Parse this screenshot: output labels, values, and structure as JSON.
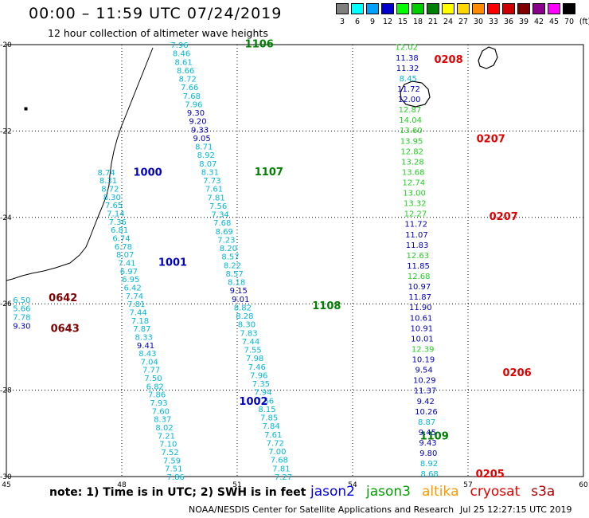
{
  "header": {
    "title": "00:00 – 11:59 UTC 07/24/2019",
    "subtitle": "12 hour collection of altimeter wave heights"
  },
  "color_scale": {
    "unit": "(ft)",
    "bins": [
      {
        "label": "3",
        "color": "#7f7f7f"
      },
      {
        "label": "6",
        "color": "#00ffff"
      },
      {
        "label": "9",
        "color": "#00a0ff"
      },
      {
        "label": "12",
        "color": "#0000cd"
      },
      {
        "label": "15",
        "color": "#00ff00"
      },
      {
        "label": "18",
        "color": "#00cc00"
      },
      {
        "label": "21",
        "color": "#008000"
      },
      {
        "label": "24",
        "color": "#ffff00"
      },
      {
        "label": "27",
        "color": "#ffd700"
      },
      {
        "label": "30",
        "color": "#ff8c00"
      },
      {
        "label": "33",
        "color": "#ff0000"
      },
      {
        "label": "36",
        "color": "#cc0000"
      },
      {
        "label": "39",
        "color": "#800000"
      },
      {
        "label": "42",
        "color": "#8b008b"
      },
      {
        "label": "45",
        "color": "#ff00ff"
      },
      {
        "label": "70",
        "color": "#000000"
      }
    ]
  },
  "axes": {
    "lon_ticks": [
      "45",
      "48",
      "51",
      "54",
      "57",
      "60"
    ],
    "lat_ticks": [
      "-20",
      "-22",
      "-24",
      "-26",
      "-28",
      "-30"
    ]
  },
  "colors": {
    "cyan": "#00b8d8",
    "blue": "#0000c0",
    "green_light": "#20d020",
    "green_dark": "#008000",
    "red": "#e00000",
    "dark_red": "#800000"
  },
  "tracks": [
    {
      "pass": "1106",
      "pass_color": "dark_green",
      "pass_lon": 51.2,
      "pass_lat": -19.97,
      "start": [
        49.5,
        -20.0
      ],
      "end": [
        52.2,
        -30.0
      ],
      "points": [
        {
          "v": "7.96",
          "c": "cyan"
        },
        {
          "v": "8.46",
          "c": "cyan"
        },
        {
          "v": "8.61",
          "c": "cyan"
        },
        {
          "v": "8.66",
          "c": "cyan"
        },
        {
          "v": "8.72",
          "c": "cyan"
        },
        {
          "v": "7.66",
          "c": "cyan"
        },
        {
          "v": "7.68",
          "c": "cyan"
        },
        {
          "v": "7.96",
          "c": "cyan"
        },
        {
          "v": "9.30",
          "c": "blue"
        },
        {
          "v": "9.20",
          "c": "blue"
        },
        {
          "v": "9.33",
          "c": "blue"
        },
        {
          "v": "9.05",
          "c": "blue"
        },
        {
          "v": "8.71",
          "c": "cyan"
        },
        {
          "v": "8.92",
          "c": "cyan"
        },
        {
          "v": "8.07",
          "c": "cyan"
        },
        {
          "v": "8.31",
          "c": "cyan"
        },
        {
          "v": "7.73",
          "c": "cyan"
        },
        {
          "v": "7.61",
          "c": "cyan"
        },
        {
          "v": "7.81",
          "c": "cyan"
        },
        {
          "v": "7.56",
          "c": "cyan"
        },
        {
          "v": "7.34",
          "c": "cyan"
        },
        {
          "v": "7.68",
          "c": "cyan"
        },
        {
          "v": "8.69",
          "c": "cyan"
        },
        {
          "v": "7.23",
          "c": "cyan"
        },
        {
          "v": "8.20",
          "c": "cyan"
        },
        {
          "v": "8.57",
          "c": "cyan"
        },
        {
          "v": "8.22",
          "c": "cyan"
        },
        {
          "v": "8.57",
          "c": "cyan"
        },
        {
          "v": "8.18",
          "c": "cyan"
        },
        {
          "v": "9.15",
          "c": "blue"
        },
        {
          "v": "9.01",
          "c": "blue"
        },
        {
          "v": "8.82",
          "c": "cyan"
        },
        {
          "v": "8.28",
          "c": "cyan"
        },
        {
          "v": "8.30",
          "c": "cyan"
        },
        {
          "v": "7.83",
          "c": "cyan"
        },
        {
          "v": "7.44",
          "c": "cyan"
        },
        {
          "v": "7.55",
          "c": "cyan"
        },
        {
          "v": "7.98",
          "c": "cyan"
        },
        {
          "v": "7.46",
          "c": "cyan"
        },
        {
          "v": "7.96",
          "c": "cyan"
        },
        {
          "v": "7.35",
          "c": "cyan"
        },
        {
          "v": "7.94",
          "c": "cyan"
        },
        {
          "v": "7.56",
          "c": "cyan"
        },
        {
          "v": "8.15",
          "c": "cyan"
        },
        {
          "v": "7.85",
          "c": "cyan"
        },
        {
          "v": "7.84",
          "c": "cyan"
        },
        {
          "v": "7.61",
          "c": "cyan"
        },
        {
          "v": "7.72",
          "c": "cyan"
        },
        {
          "v": "7.00",
          "c": "cyan"
        },
        {
          "v": "7.68",
          "c": "cyan"
        },
        {
          "v": "7.81",
          "c": "cyan"
        },
        {
          "v": "7.27",
          "c": "cyan"
        }
      ],
      "extra_labels": [
        {
          "text": "1107",
          "color": "dark_green",
          "lon": 51.45,
          "lat": -22.93
        },
        {
          "text": "1108",
          "color": "dark_green",
          "lon": 52.95,
          "lat": -26.03
        },
        {
          "text": "1109",
          "color": "dark_green",
          "lon": 55.75,
          "lat": -29.05
        }
      ]
    },
    {
      "pass": "1000",
      "pass_color": "blue",
      "pass_lon": 48.3,
      "pass_lat": -22.94,
      "start": [
        47.6,
        -22.95
      ],
      "end": [
        49.4,
        -30.0
      ],
      "points": [
        {
          "v": "8.74",
          "c": "cyan"
        },
        {
          "v": "8.31",
          "c": "cyan"
        },
        {
          "v": "8.72",
          "c": "cyan"
        },
        {
          "v": "8.30",
          "c": "cyan"
        },
        {
          "v": "7.65",
          "c": "cyan"
        },
        {
          "v": "7.14",
          "c": "cyan"
        },
        {
          "v": "7.36",
          "c": "cyan"
        },
        {
          "v": "6.81",
          "c": "cyan"
        },
        {
          "v": "6.74",
          "c": "cyan"
        },
        {
          "v": "6.78",
          "c": "cyan"
        },
        {
          "v": "8.07",
          "c": "cyan"
        },
        {
          "v": "7.41",
          "c": "cyan"
        },
        {
          "v": "6.97",
          "c": "cyan"
        },
        {
          "v": "6.95",
          "c": "cyan"
        },
        {
          "v": "6.42",
          "c": "cyan"
        },
        {
          "v": "7.74",
          "c": "cyan"
        },
        {
          "v": "7.81",
          "c": "cyan"
        },
        {
          "v": "7.44",
          "c": "cyan"
        },
        {
          "v": "7.18",
          "c": "cyan"
        },
        {
          "v": "7.87",
          "c": "cyan"
        },
        {
          "v": "8.33",
          "c": "cyan"
        },
        {
          "v": "9.41",
          "c": "blue"
        },
        {
          "v": "8.43",
          "c": "cyan"
        },
        {
          "v": "7.04",
          "c": "cyan"
        },
        {
          "v": "7.77",
          "c": "cyan"
        },
        {
          "v": "7.50",
          "c": "cyan"
        },
        {
          "v": "6.82",
          "c": "cyan"
        },
        {
          "v": "7.86",
          "c": "cyan"
        },
        {
          "v": "7.93",
          "c": "cyan"
        },
        {
          "v": "7.60",
          "c": "cyan"
        },
        {
          "v": "8.37",
          "c": "cyan"
        },
        {
          "v": "8.02",
          "c": "cyan"
        },
        {
          "v": "7.21",
          "c": "cyan"
        },
        {
          "v": "7.10",
          "c": "cyan"
        },
        {
          "v": "7.52",
          "c": "cyan"
        },
        {
          "v": "7.59",
          "c": "cyan"
        },
        {
          "v": "7.51",
          "c": "cyan"
        },
        {
          "v": "7.86",
          "c": "cyan"
        }
      ],
      "extra_labels": [
        {
          "text": "1001",
          "color": "blue",
          "lon": 48.95,
          "lat": -25.03
        },
        {
          "text": "1002",
          "color": "blue",
          "lon": 51.05,
          "lat": -28.25
        }
      ]
    },
    {
      "pass": "0208",
      "pass_color": "red",
      "pass_lon": 56.12,
      "pass_lat": -20.33,
      "start": [
        55.4,
        -20.05
      ],
      "end": [
        56.0,
        -29.93
      ],
      "points": [
        {
          "v": "12.02",
          "c": "green_light"
        },
        {
          "v": "11.38",
          "c": "blue"
        },
        {
          "v": "11.32",
          "c": "blue"
        },
        {
          "v": "8.45",
          "c": "cyan"
        },
        {
          "v": "11.72",
          "c": "blue"
        },
        {
          "v": "12.00",
          "c": "blue"
        },
        {
          "v": "12.87",
          "c": "green_light"
        },
        {
          "v": "14.04",
          "c": "green_light"
        },
        {
          "v": "13.60",
          "c": "green_light"
        },
        {
          "v": "13.95",
          "c": "green_light"
        },
        {
          "v": "12.82",
          "c": "green_light"
        },
        {
          "v": "13.28",
          "c": "green_light"
        },
        {
          "v": "13.68",
          "c": "green_light"
        },
        {
          "v": "12.74",
          "c": "green_light"
        },
        {
          "v": "13.00",
          "c": "green_light"
        },
        {
          "v": "13.32",
          "c": "green_light"
        },
        {
          "v": "12.27",
          "c": "green_light"
        },
        {
          "v": "11.72",
          "c": "blue"
        },
        {
          "v": "11.07",
          "c": "blue"
        },
        {
          "v": "11.83",
          "c": "blue"
        },
        {
          "v": "12.63",
          "c": "green_light"
        },
        {
          "v": "11.85",
          "c": "blue"
        },
        {
          "v": "12.68",
          "c": "green_light"
        },
        {
          "v": "10.97",
          "c": "blue"
        },
        {
          "v": "11.87",
          "c": "blue"
        },
        {
          "v": "11.90",
          "c": "blue"
        },
        {
          "v": "10.61",
          "c": "blue"
        },
        {
          "v": "10.91",
          "c": "blue"
        },
        {
          "v": "10.01",
          "c": "blue"
        },
        {
          "v": "12.39",
          "c": "green_light"
        },
        {
          "v": "10.19",
          "c": "blue"
        },
        {
          "v": "9.54",
          "c": "blue"
        },
        {
          "v": "10.29",
          "c": "blue"
        },
        {
          "v": "11.37",
          "c": "blue"
        },
        {
          "v": "9.42",
          "c": "blue"
        },
        {
          "v": "10.26",
          "c": "blue"
        },
        {
          "v": "8.87",
          "c": "cyan"
        },
        {
          "v": "9.45",
          "c": "blue"
        },
        {
          "v": "9.43",
          "c": "blue"
        },
        {
          "v": "9.80",
          "c": "blue"
        },
        {
          "v": "8.92",
          "c": "cyan"
        },
        {
          "v": "8.68",
          "c": "cyan"
        }
      ],
      "extra_labels": [
        {
          "text": "0207",
          "color": "red",
          "lon": 57.22,
          "lat": -22.17
        },
        {
          "text": "0207",
          "color": "red",
          "lon": 57.55,
          "lat": -23.97
        },
        {
          "text": "0206",
          "color": "red",
          "lon": 57.9,
          "lat": -27.58
        },
        {
          "text": "0205",
          "color": "red",
          "lon": 57.2,
          "lat": -29.93
        }
      ]
    },
    {
      "pass": "0642",
      "pass_color": "dark_red",
      "pass_lon": 46.1,
      "pass_lat": -25.85,
      "start": [
        45.4,
        -25.9
      ],
      "end": [
        45.4,
        -26.5
      ],
      "points": [
        {
          "v": "6.50",
          "c": "cyan"
        },
        {
          "v": "5.66",
          "c": "cyan"
        },
        {
          "v": "7.78",
          "c": "cyan"
        },
        {
          "v": "9.30",
          "c": "blue"
        }
      ],
      "extra_labels": [
        {
          "text": "0643",
          "color": "dark_red",
          "lon": 46.15,
          "lat": -26.56
        }
      ]
    }
  ],
  "footer": {
    "note": "note:  1) Time is in UTC;  2) SWH is in feet",
    "satellites": [
      {
        "name": "jason2",
        "color": "#0000e0"
      },
      {
        "name": "jason3",
        "color": "#00a000"
      },
      {
        "name": "altika",
        "color": "#ff9900"
      },
      {
        "name": "cryosat",
        "color": "#e00000"
      },
      {
        "name": "s3a",
        "color": "#b00000"
      }
    ],
    "credit": "NOAA/NESDIS Center for Satellite Applications and Research",
    "timestamp": "Jul 25 12:27:15 UTC 2019"
  }
}
